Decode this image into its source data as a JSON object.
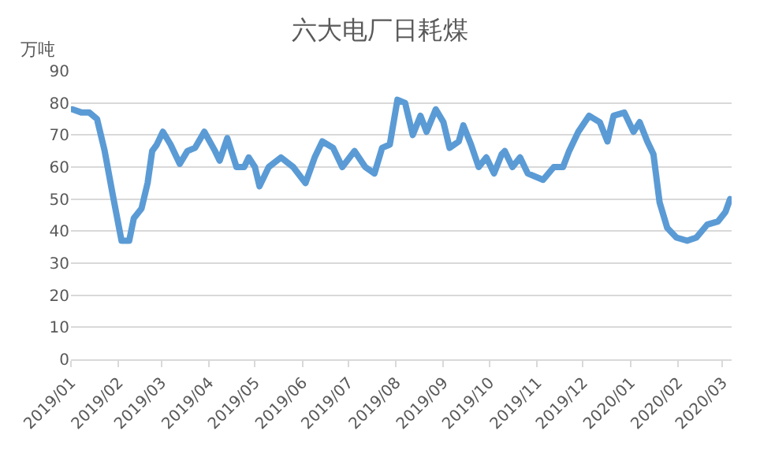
{
  "chart_data": {
    "type": "line",
    "title": "六大电厂日耗煤",
    "ylabel": "万吨",
    "x": [
      "2019-01-02",
      "2019-01-08",
      "2019-01-13",
      "2019-01-18",
      "2019-01-23",
      "2019-01-28",
      "2019-02-01",
      "2019-02-03",
      "2019-02-08",
      "2019-02-11",
      "2019-02-16",
      "2019-02-20",
      "2019-02-23",
      "2019-02-26",
      "2019-03-02",
      "2019-03-07",
      "2019-03-13",
      "2019-03-18",
      "2019-03-23",
      "2019-03-29",
      "2019-04-05",
      "2019-04-08",
      "2019-04-13",
      "2019-04-19",
      "2019-04-24",
      "2019-04-27",
      "2019-05-01",
      "2019-05-04",
      "2019-05-10",
      "2019-05-18",
      "2019-05-26",
      "2019-06-03",
      "2019-06-09",
      "2019-06-14",
      "2019-06-21",
      "2019-06-27",
      "2019-07-05",
      "2019-07-12",
      "2019-07-18",
      "2019-07-23",
      "2019-07-28",
      "2019-08-02",
      "2019-08-07",
      "2019-08-12",
      "2019-08-17",
      "2019-08-21",
      "2019-08-27",
      "2019-09-01",
      "2019-09-05",
      "2019-09-11",
      "2019-09-14",
      "2019-09-19",
      "2019-09-24",
      "2019-09-29",
      "2019-10-04",
      "2019-10-09",
      "2019-10-11",
      "2019-10-16",
      "2019-10-21",
      "2019-10-26",
      "2019-11-05",
      "2019-11-12",
      "2019-11-18",
      "2019-11-22",
      "2019-11-28",
      "2019-12-05",
      "2019-12-12",
      "2019-12-17",
      "2019-12-21",
      "2019-12-28",
      "2020-01-03",
      "2020-01-07",
      "2020-01-12",
      "2020-01-16",
      "2020-01-20",
      "2020-01-25",
      "2020-01-31",
      "2020-02-07",
      "2020-02-13",
      "2020-02-20",
      "2020-02-27",
      "2020-03-03",
      "2020-03-06"
    ],
    "series": [
      {
        "color": "#5b9bd5",
        "values": [
          78,
          77,
          77,
          75,
          65,
          52,
          42,
          37,
          37,
          44,
          47,
          55,
          65,
          67,
          71,
          67,
          61,
          65,
          66,
          71,
          65,
          62,
          69,
          60,
          60,
          63,
          60,
          54,
          60,
          63,
          60,
          55,
          63,
          68,
          66,
          60,
          65,
          60,
          58,
          66,
          67,
          81,
          80,
          70,
          76,
          71,
          78,
          74,
          66,
          68,
          73,
          67,
          60,
          63,
          58,
          64,
          65,
          60,
          63,
          58,
          56,
          60,
          60,
          65,
          71,
          76,
          74,
          68,
          76,
          77,
          71,
          74,
          68,
          64,
          49,
          41,
          38,
          37,
          38,
          42,
          43,
          46,
          50
        ]
      }
    ],
    "xlim": [
      "2019-01-01",
      "2020-03-07"
    ],
    "xticks": [
      {
        "value": "2019-01-01",
        "label": "2019/01"
      },
      {
        "value": "2019-02-01",
        "label": "2019/02"
      },
      {
        "value": "2019-03-01",
        "label": "2019/03"
      },
      {
        "value": "2019-04-01",
        "label": "2019/04"
      },
      {
        "value": "2019-05-01",
        "label": "2019/05"
      },
      {
        "value": "2019-06-01",
        "label": "2019/06"
      },
      {
        "value": "2019-07-01",
        "label": "2019/07"
      },
      {
        "value": "2019-08-01",
        "label": "2019/08"
      },
      {
        "value": "2019-09-01",
        "label": "2019/09"
      },
      {
        "value": "2019-10-01",
        "label": "2019/10"
      },
      {
        "value": "2019-11-01",
        "label": "2019/11"
      },
      {
        "value": "2019-12-01",
        "label": "2019/12"
      },
      {
        "value": "2020-01-01",
        "label": "2020/01"
      },
      {
        "value": "2020-02-01",
        "label": "2020/02"
      },
      {
        "value": "2020-03-01",
        "label": "2020/03"
      }
    ],
    "ylim": [
      0,
      90
    ],
    "yticks": [
      0,
      10,
      20,
      30,
      40,
      50,
      60,
      70,
      80,
      90
    ],
    "grid": "y",
    "marker": "none",
    "line_style": "solid"
  }
}
